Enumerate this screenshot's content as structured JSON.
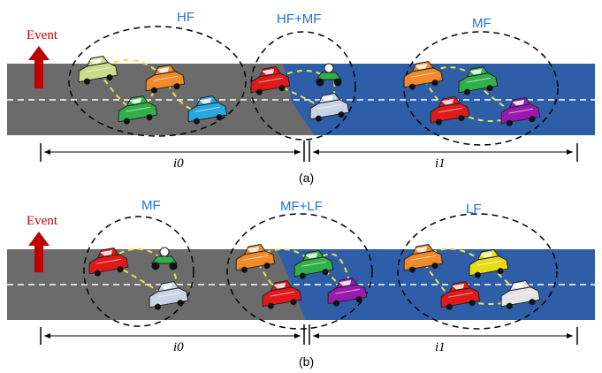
{
  "colors": {
    "road_gray": "#6b6b6b",
    "road_blue": "#2f5ea8",
    "dash": "#ffffff",
    "arrow": "#c00000",
    "label_blue": "#1f6fe0",
    "link": "#e8e34a"
  },
  "panels": [
    {
      "caption": "(a)",
      "event": "Event",
      "clusters": [
        "HF",
        "HF+MF",
        "MF"
      ],
      "intervals": [
        "i0",
        "i1"
      ],
      "vehicles": [
        {
          "color": "#c8dc8a",
          "type": "car"
        },
        {
          "color": "#f08a2a",
          "type": "car"
        },
        {
          "color": "#2fb04a",
          "type": "car"
        },
        {
          "color": "#2aa6e0",
          "type": "car"
        },
        {
          "color": "#e01a1a",
          "type": "car"
        },
        {
          "color": "#2fb04a",
          "type": "motorbike"
        },
        {
          "color": "#c8d4e6",
          "type": "car"
        },
        {
          "color": "#f08a2a",
          "type": "car"
        },
        {
          "color": "#2fb04a",
          "type": "car"
        },
        {
          "color": "#e01a1a",
          "type": "car"
        },
        {
          "color": "#9a1ab0",
          "type": "car"
        }
      ]
    },
    {
      "caption": "(b)",
      "event": "Event",
      "clusters": [
        "MF",
        "MF+LF",
        "LF"
      ],
      "intervals": [
        "i0",
        "i1"
      ],
      "vehicles": [
        {
          "color": "#e01a1a",
          "type": "car"
        },
        {
          "color": "#2fb04a",
          "type": "motorbike"
        },
        {
          "color": "#c8d4e6",
          "type": "car"
        },
        {
          "color": "#f08a2a",
          "type": "car"
        },
        {
          "color": "#2fb04a",
          "type": "car"
        },
        {
          "color": "#e01a1a",
          "type": "car"
        },
        {
          "color": "#9a1ab0",
          "type": "car"
        },
        {
          "color": "#f08a2a",
          "type": "car"
        },
        {
          "color": "#e8dc1a",
          "type": "car"
        },
        {
          "color": "#e01a1a",
          "type": "car"
        },
        {
          "color": "#e4e4e4",
          "type": "car"
        }
      ]
    }
  ]
}
